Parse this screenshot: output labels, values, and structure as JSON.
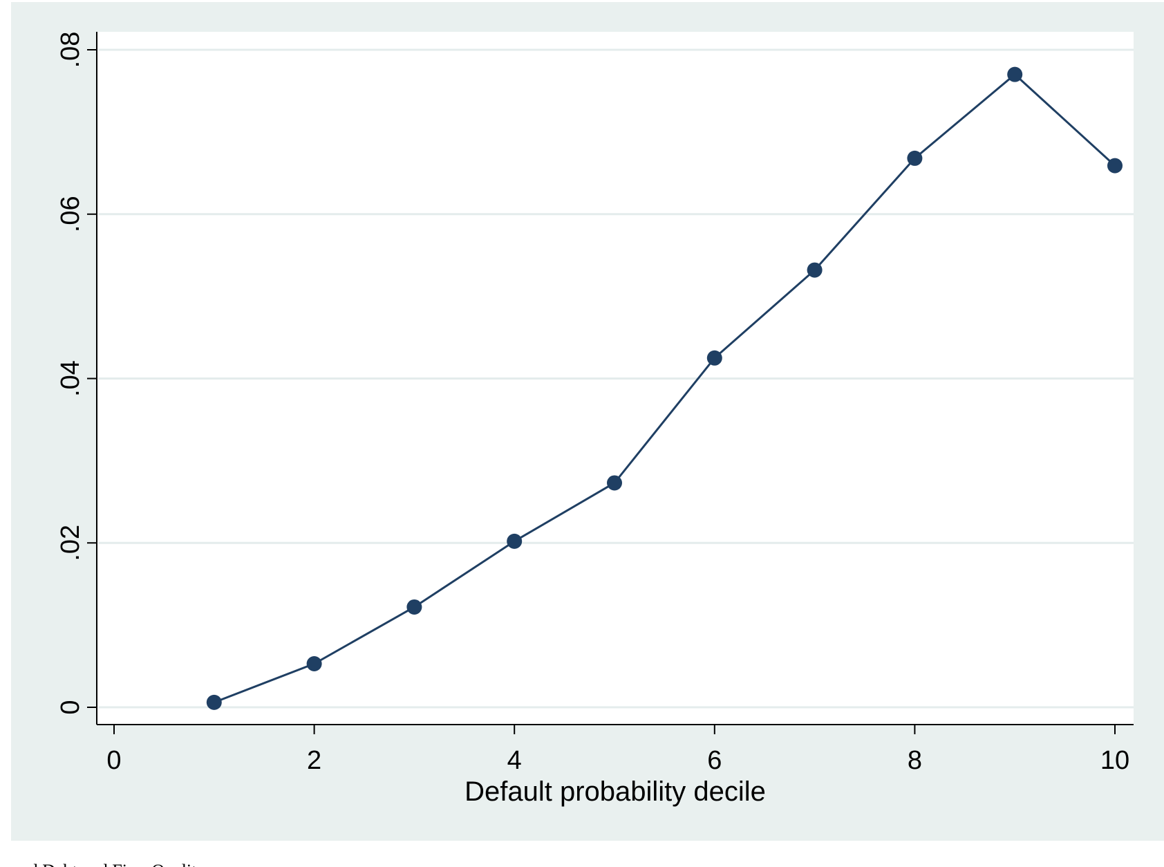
{
  "chart_data": {
    "type": "line",
    "title": "",
    "xlabel": "Default probability decile",
    "ylabel": "",
    "xlim": [
      0,
      10
    ],
    "ylim": [
      0,
      0.08
    ],
    "x_ticks": [
      0,
      2,
      4,
      6,
      8,
      10
    ],
    "x_tick_labels": [
      "0",
      "2",
      "4",
      "6",
      "8",
      "10"
    ],
    "y_ticks": [
      0,
      0.02,
      0.04,
      0.06,
      0.08
    ],
    "y_tick_labels": [
      "0",
      ".02",
      ".04",
      ".06",
      ".08"
    ],
    "grid": "horizontal",
    "series": [
      {
        "x": [
          1,
          2,
          3,
          4,
          5,
          6,
          7,
          8,
          9,
          10
        ],
        "y": [
          0.0006,
          0.0053,
          0.0122,
          0.0202,
          0.0273,
          0.0425,
          0.0532,
          0.0668,
          0.077,
          0.0659
        ],
        "color": "#1f3f63",
        "marker": "circle"
      }
    ]
  },
  "colors": {
    "outer_background": "#e9f0ef",
    "plot_background": "#ffffff",
    "gridline": "#e4ecec",
    "series": "#1f3f63"
  },
  "caption": "cured Debt and Firm Quality"
}
